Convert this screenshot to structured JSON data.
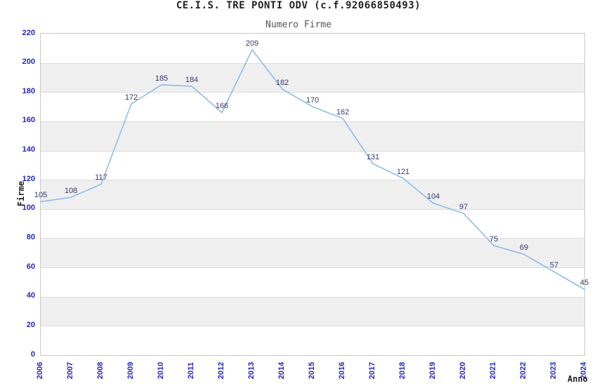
{
  "header": {
    "title": "CE.I.S. TRE PONTI ODV (c.f.92066850493)",
    "subtitle": "Numero Firme"
  },
  "chart_data": {
    "type": "line",
    "title": "CE.I.S. TRE PONTI ODV (c.f.92066850493)",
    "subtitle": "Numero Firme",
    "xlabel": "Anno",
    "ylabel": "Firme",
    "x": [
      "2006",
      "2007",
      "2008",
      "2009",
      "2010",
      "2011",
      "2012",
      "2013",
      "2014",
      "2015",
      "2016",
      "2017",
      "2018",
      "2019",
      "2020",
      "2021",
      "2022",
      "2023",
      "2024"
    ],
    "series": [
      {
        "name": "Numero Firme",
        "values": [
          105,
          108,
          117,
          172,
          185,
          184,
          166,
          209,
          182,
          170,
          162,
          131,
          121,
          104,
          97,
          75,
          69,
          57,
          45
        ]
      }
    ],
    "data_labels": [
      105,
      108,
      117,
      172,
      185,
      184,
      166,
      209,
      182,
      170,
      162,
      131,
      121,
      104,
      97,
      75,
      69,
      57,
      45
    ],
    "ylim": [
      0,
      220
    ],
    "ytick_step": 20,
    "yticks": [
      0,
      20,
      40,
      60,
      80,
      100,
      120,
      140,
      160,
      180,
      200,
      220
    ],
    "legend": "none",
    "grid": "horizontal bands alternating white/gray every 20 units, thin gridline at each step",
    "x_tick_rotation_deg": -90,
    "markers": "none",
    "colors": {
      "line": "#88b8ea",
      "tick_label": "#2323c8",
      "data_label": "#373770",
      "band_fill": "#efefef",
      "gridline": "#dcdcdc",
      "plot_border": "#c9c9c9",
      "title": "#222222",
      "subtitle": "#555555",
      "background": "#ffffff"
    }
  }
}
